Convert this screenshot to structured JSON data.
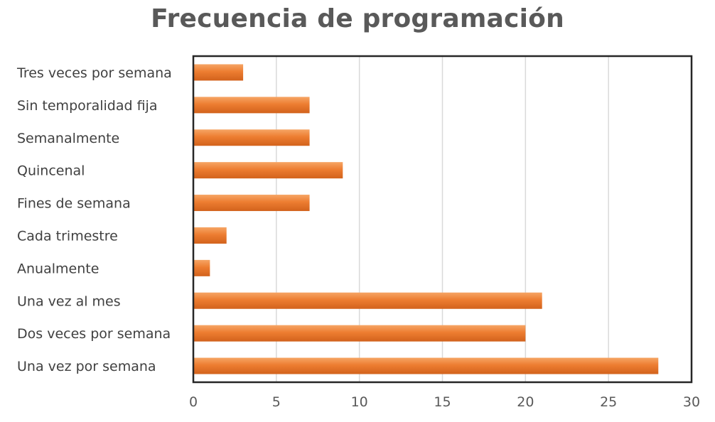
{
  "chart_data": {
    "type": "bar",
    "orientation": "horizontal",
    "title": "Frecuencia de programación",
    "categories": [
      "Tres veces por semana",
      "Sin temporalidad fija",
      "Semanalmente",
      "Quincenal",
      "Fines de semana",
      "Cada trimestre",
      "Anualmente",
      "Una vez al mes",
      "Dos veces por semana",
      "Una vez por semana"
    ],
    "values": [
      3,
      7,
      7,
      9,
      7,
      2,
      1,
      21,
      20,
      28
    ],
    "xlim": [
      0,
      30
    ],
    "xticks": [
      0,
      5,
      10,
      15,
      20,
      25,
      30
    ],
    "xlabel": "",
    "ylabel": "",
    "grid": true,
    "legend": "none",
    "colors": {
      "bar": "#ED7D31",
      "bar_light": "#F6A565",
      "bar_dark": "#D2621C",
      "grid": "#D9D9D9",
      "frame": "#262626",
      "title": "#595959"
    }
  }
}
